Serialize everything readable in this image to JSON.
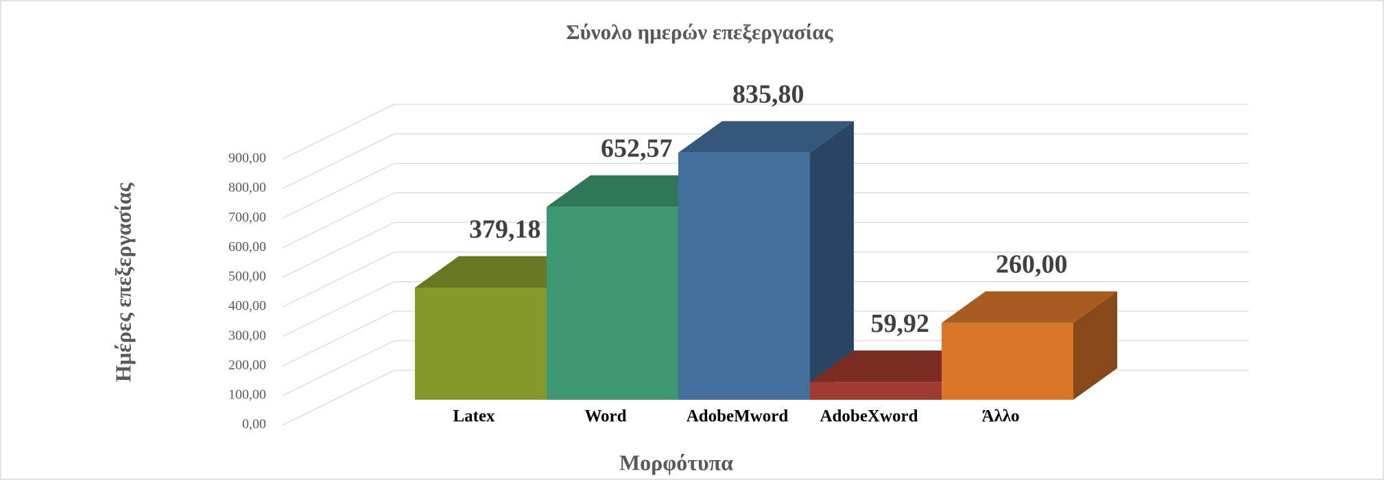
{
  "chart_data": {
    "type": "bar3d",
    "title": "Σύνολο ημερών επεξεργασίας",
    "x_label": "Μορφότυπα",
    "y_label": "Ημέρες επεξεργασίας",
    "categories": [
      "Latex",
      "Word",
      "AdobeMword",
      "AdobeXword",
      "Άλλο"
    ],
    "values": [
      379.18,
      652.57,
      835.8,
      59.92,
      260.0
    ],
    "value_labels": [
      "379,18",
      "652,57",
      "835,80",
      "59,92",
      "260,00"
    ],
    "colors": [
      "#84982b",
      "#3e9771",
      "#436f9c",
      "#9e3a2f",
      "#d9762a"
    ],
    "ylim": [
      0,
      900
    ],
    "yticks": [
      {
        "value": 0,
        "label": "0,00"
      },
      {
        "value": 100,
        "label": "100,00"
      },
      {
        "value": 200,
        "label": "200,00"
      },
      {
        "value": 300,
        "label": "300,00"
      },
      {
        "value": 400,
        "label": "400,00"
      },
      {
        "value": 500,
        "label": "500,00"
      },
      {
        "value": 600,
        "label": "600,00"
      },
      {
        "value": 700,
        "label": "700,00"
      },
      {
        "value": 800,
        "label": "800,00"
      },
      {
        "value": 900,
        "label": "900,00"
      }
    ],
    "grid": true
  }
}
